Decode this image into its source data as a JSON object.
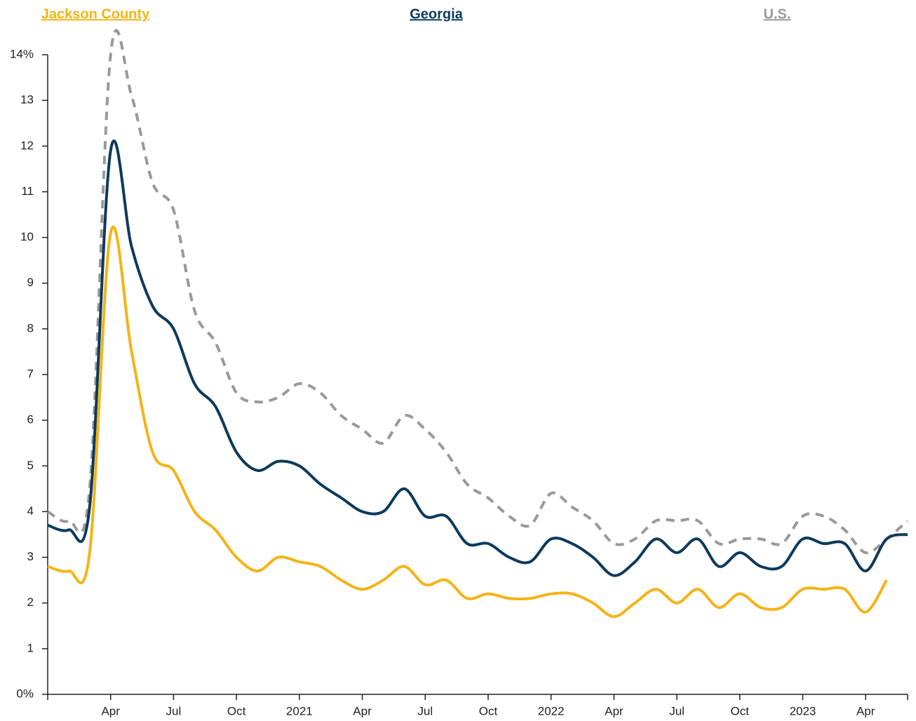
{
  "chart_data": {
    "type": "line",
    "x": [
      "2020-01",
      "2020-02",
      "2020-03",
      "2020-04",
      "2020-05",
      "2020-06",
      "2020-07",
      "2020-08",
      "2020-09",
      "2020-10",
      "2020-11",
      "2020-12",
      "2021-01",
      "2021-02",
      "2021-03",
      "2021-04",
      "2021-05",
      "2021-06",
      "2021-07",
      "2021-08",
      "2021-09",
      "2021-10",
      "2021-11",
      "2021-12",
      "2022-01",
      "2022-02",
      "2022-03",
      "2022-04",
      "2022-05",
      "2022-06",
      "2022-07",
      "2022-08",
      "2022-09",
      "2022-10",
      "2022-11",
      "2022-12",
      "2023-01",
      "2023-02",
      "2023-03",
      "2023-04",
      "2023-05",
      "2023-06"
    ],
    "series": [
      {
        "name": "Jackson County",
        "color": "#f5b316",
        "dashed": false,
        "values": [
          2.8,
          2.7,
          3.1,
          10.1,
          7.5,
          5.3,
          4.9,
          4.0,
          3.6,
          3.0,
          2.7,
          3.0,
          2.9,
          2.8,
          2.5,
          2.3,
          2.5,
          2.8,
          2.4,
          2.5,
          2.1,
          2.2,
          2.1,
          2.1,
          2.2,
          2.2,
          2.0,
          1.7,
          2.0,
          2.3,
          2.0,
          2.3,
          1.9,
          2.2,
          1.9,
          1.9,
          2.3,
          2.3,
          2.3,
          1.8,
          2.5,
          null
        ]
      },
      {
        "name": "Georgia",
        "color": "#0d3a5c",
        "dashed": false,
        "values": [
          3.7,
          3.6,
          4.1,
          11.9,
          9.8,
          8.5,
          8.0,
          6.8,
          6.3,
          5.3,
          4.9,
          5.1,
          5.0,
          4.6,
          4.3,
          4.0,
          4.0,
          4.5,
          3.9,
          3.9,
          3.3,
          3.3,
          3.0,
          2.9,
          3.4,
          3.3,
          3.0,
          2.6,
          2.9,
          3.4,
          3.1,
          3.4,
          2.8,
          3.1,
          2.8,
          2.8,
          3.4,
          3.3,
          3.3,
          2.7,
          3.4,
          3.5
        ]
      },
      {
        "name": "U.S.",
        "color": "#999999",
        "dashed": true,
        "values": [
          4.0,
          3.8,
          4.5,
          14.0,
          13.1,
          11.2,
          10.6,
          8.4,
          7.7,
          6.6,
          6.4,
          6.5,
          6.8,
          6.6,
          6.1,
          5.8,
          5.5,
          6.1,
          5.8,
          5.3,
          4.6,
          4.3,
          3.9,
          3.7,
          4.4,
          4.1,
          3.8,
          3.3,
          3.4,
          3.8,
          3.8,
          3.8,
          3.3,
          3.4,
          3.4,
          3.3,
          3.9,
          3.9,
          3.6,
          3.1,
          3.4,
          3.8
        ]
      }
    ],
    "xlim": [
      "2020-01",
      "2023-06"
    ],
    "xticks": [
      {
        "value": "2020-04",
        "label": "Apr"
      },
      {
        "value": "2020-07",
        "label": "Jul"
      },
      {
        "value": "2020-10",
        "label": "Oct"
      },
      {
        "value": "2021-01",
        "label": "2021"
      },
      {
        "value": "2021-04",
        "label": "Apr"
      },
      {
        "value": "2021-07",
        "label": "Jul"
      },
      {
        "value": "2021-10",
        "label": "Oct"
      },
      {
        "value": "2022-01",
        "label": "2022"
      },
      {
        "value": "2022-04",
        "label": "Apr"
      },
      {
        "value": "2022-07",
        "label": "Jul"
      },
      {
        "value": "2022-10",
        "label": "Oct"
      },
      {
        "value": "2023-01",
        "label": "2023"
      },
      {
        "value": "2023-04",
        "label": "Apr"
      }
    ],
    "ylim": [
      0,
      14
    ],
    "yticks": [
      {
        "value": 0,
        "label": "0%"
      },
      1,
      2,
      3,
      4,
      5,
      6,
      7,
      8,
      9,
      10,
      11,
      12,
      13,
      {
        "value": 14,
        "label": "14%"
      }
    ]
  }
}
